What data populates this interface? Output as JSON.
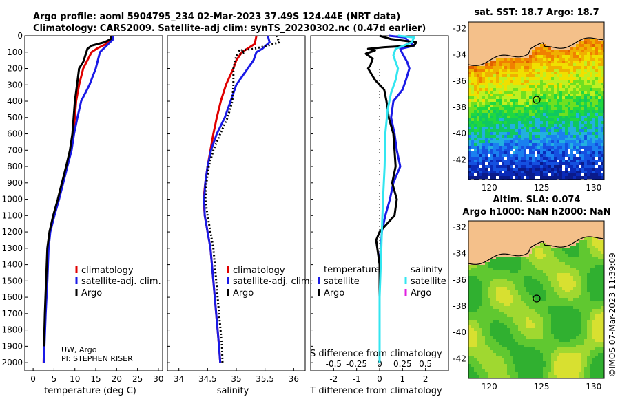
{
  "header": {
    "title_line1": "Argo profile: aoml 5904795_234 02-Mar-2023 37.49S 124.44E (NRT data)",
    "title_line2": "Climatology: CARS2009. Satellite-adj clim: synTS_20230302.nc (0.47d earlier)"
  },
  "credits": {
    "line1": "UW, Argo",
    "line2": "PI: STEPHEN RISER"
  },
  "watermark": "©IMOS 07-Mar-2023 11:39:09",
  "colors": {
    "argo": "#000000",
    "climatology": "#e00000",
    "satellite": "#1a1ae6",
    "sat_salinity": "#33e6f0",
    "argo_salinity": "#e020e0"
  },
  "chart_data": [
    {
      "type": "line",
      "xlabel": "temperature (deg C)",
      "ylabel": "",
      "xlim": [
        -2,
        31
      ],
      "ylim": [
        2050,
        0
      ],
      "xticks": [
        0,
        5,
        10,
        15,
        20,
        25,
        30
      ],
      "yticks": [
        0,
        100,
        200,
        300,
        400,
        500,
        600,
        700,
        800,
        900,
        1000,
        1100,
        1200,
        1300,
        1400,
        1500,
        1600,
        1700,
        1800,
        1900,
        2000
      ],
      "legend": [
        "climatology",
        "satellite-adj. clim.",
        "Argo"
      ],
      "series": [
        {
          "name": "climatology",
          "style": "red",
          "points": [
            [
              18.7,
              0
            ],
            [
              18.5,
              20
            ],
            [
              17.5,
              50
            ],
            [
              15.5,
              75
            ],
            [
              14,
              100
            ],
            [
              13,
              150
            ],
            [
              12,
              200
            ],
            [
              11,
              300
            ],
            [
              10.3,
              400
            ],
            [
              10,
              500
            ],
            [
              9.6,
              600
            ],
            [
              9,
              700
            ],
            [
              8,
              800
            ],
            [
              7,
              900
            ],
            [
              6,
              1000
            ],
            [
              5,
              1100
            ],
            [
              4,
              1200
            ],
            [
              3.6,
              1300
            ],
            [
              3.3,
              1500
            ],
            [
              2.9,
              1700
            ],
            [
              2.6,
              1900
            ],
            [
              2.5,
              2000
            ]
          ]
        },
        {
          "name": "satellite-adj. clim.",
          "style": "blue",
          "points": [
            [
              19.2,
              0
            ],
            [
              19.2,
              20
            ],
            [
              18,
              50
            ],
            [
              16,
              100
            ],
            [
              15,
              200
            ],
            [
              13.5,
              300
            ],
            [
              11.5,
              400
            ],
            [
              10.6,
              500
            ],
            [
              9.8,
              600
            ],
            [
              9.2,
              700
            ],
            [
              8.2,
              800
            ],
            [
              7.2,
              900
            ],
            [
              6.2,
              1000
            ],
            [
              5.1,
              1100
            ],
            [
              4.1,
              1200
            ],
            [
              3.7,
              1300
            ],
            [
              3.4,
              1500
            ],
            [
              3,
              1700
            ],
            [
              2.7,
              1900
            ],
            [
              2.6,
              2000
            ]
          ]
        },
        {
          "name": "Argo",
          "style": "black",
          "points": [
            [
              18.7,
              0
            ],
            [
              18.6,
              20
            ],
            [
              17,
              40
            ],
            [
              14,
              60
            ],
            [
              13,
              80
            ],
            [
              12.5,
              120
            ],
            [
              12,
              160
            ],
            [
              11,
              200
            ],
            [
              10.5,
              300
            ],
            [
              10,
              400
            ],
            [
              9.7,
              500
            ],
            [
              9.4,
              600
            ],
            [
              8.8,
              700
            ],
            [
              7.9,
              800
            ],
            [
              6.9,
              900
            ],
            [
              5.9,
              1000
            ],
            [
              4.8,
              1100
            ],
            [
              3.9,
              1200
            ],
            [
              3.4,
              1300
            ],
            [
              3.1,
              1500
            ],
            [
              2.8,
              1700
            ],
            [
              2.6,
              1900
            ]
          ]
        }
      ]
    },
    {
      "type": "line",
      "xlabel": "salinity",
      "ylabel": "",
      "xlim": [
        33.8,
        36.2
      ],
      "ylim": [
        2050,
        0
      ],
      "xticks": [
        34,
        34.5,
        35,
        35.5,
        36
      ],
      "legend": [
        "climatology",
        "satellite-adj. clim.",
        "Argo"
      ],
      "series": [
        {
          "name": "climatology",
          "style": "red",
          "points": [
            [
              35.35,
              0
            ],
            [
              35.32,
              50
            ],
            [
              35.1,
              100
            ],
            [
              35.0,
              150
            ],
            [
              34.95,
              200
            ],
            [
              34.82,
              300
            ],
            [
              34.73,
              400
            ],
            [
              34.66,
              500
            ],
            [
              34.6,
              600
            ],
            [
              34.55,
              700
            ],
            [
              34.5,
              800
            ],
            [
              34.46,
              900
            ],
            [
              34.43,
              1000
            ],
            [
              34.45,
              1100
            ],
            [
              34.5,
              1200
            ],
            [
              34.55,
              1300
            ],
            [
              34.6,
              1500
            ],
            [
              34.65,
              1700
            ],
            [
              34.7,
              1900
            ],
            [
              34.72,
              2000
            ]
          ]
        },
        {
          "name": "satellite-adj. clim.",
          "style": "blue",
          "points": [
            [
              35.55,
              0
            ],
            [
              35.58,
              40
            ],
            [
              35.45,
              80
            ],
            [
              35.35,
              100
            ],
            [
              35.3,
              150
            ],
            [
              35.2,
              200
            ],
            [
              35.1,
              250
            ],
            [
              35.0,
              300
            ],
            [
              34.9,
              400
            ],
            [
              34.8,
              500
            ],
            [
              34.66,
              600
            ],
            [
              34.56,
              700
            ],
            [
              34.5,
              800
            ],
            [
              34.46,
              900
            ],
            [
              34.44,
              1000
            ],
            [
              34.45,
              1100
            ],
            [
              34.5,
              1200
            ],
            [
              34.55,
              1300
            ],
            [
              34.6,
              1500
            ],
            [
              34.65,
              1700
            ],
            [
              34.7,
              1900
            ],
            [
              34.72,
              2000
            ]
          ]
        },
        {
          "name": "Argo",
          "style": "black-dotted",
          "points": [
            [
              35.7,
              0
            ],
            [
              35.75,
              40
            ],
            [
              35.55,
              60
            ],
            [
              35.3,
              80
            ],
            [
              35.05,
              90
            ],
            [
              35.15,
              100
            ],
            [
              35.0,
              120
            ],
            [
              34.95,
              200
            ],
            [
              34.95,
              250
            ],
            [
              34.95,
              300
            ],
            [
              34.93,
              400
            ],
            [
              34.85,
              500
            ],
            [
              34.72,
              600
            ],
            [
              34.6,
              700
            ],
            [
              34.52,
              800
            ],
            [
              34.48,
              900
            ],
            [
              34.46,
              1000
            ],
            [
              34.5,
              1100
            ],
            [
              34.55,
              1200
            ],
            [
              34.6,
              1300
            ],
            [
              34.65,
              1500
            ],
            [
              34.7,
              1700
            ],
            [
              34.75,
              1900
            ],
            [
              34.76,
              2000
            ]
          ]
        }
      ]
    },
    {
      "type": "line",
      "xlabel": "T difference from climatology",
      "ylabel": "",
      "xlabel_top": "S difference from climatology",
      "xlim": [
        -3,
        3
      ],
      "ylim": [
        2050,
        0
      ],
      "xticks": [
        -2,
        -1,
        0,
        1,
        2
      ],
      "xticks_top": [
        "-0.5",
        "-0.25",
        "0",
        "0.25",
        "0.5"
      ],
      "legend_titles": [
        "temperature",
        "salinity"
      ],
      "legend": [
        "satellite",
        "Argo",
        "satellite",
        "Argo"
      ],
      "series": [
        {
          "name": "satellite",
          "style": "blue",
          "points": [
            [
              0.4,
              0
            ],
            [
              1.1,
              10
            ],
            [
              1.3,
              40
            ],
            [
              1.5,
              60
            ],
            [
              0.9,
              80
            ],
            [
              1.0,
              110
            ],
            [
              1.2,
              160
            ],
            [
              1.3,
              200
            ],
            [
              1.15,
              270
            ],
            [
              1.0,
              330
            ],
            [
              0.6,
              400
            ],
            [
              0.5,
              500
            ],
            [
              0.65,
              600
            ],
            [
              0.75,
              700
            ],
            [
              0.9,
              800
            ],
            [
              0.6,
              900
            ],
            [
              0.45,
              1000
            ],
            [
              0.25,
              1100
            ],
            [
              0.1,
              1200
            ],
            [
              0,
              1400
            ],
            [
              0,
              1600
            ],
            [
              0,
              1800
            ],
            [
              0,
              2000
            ]
          ]
        },
        {
          "name": "Argo",
          "style": "black",
          "points": [
            [
              0,
              0
            ],
            [
              0.5,
              20
            ],
            [
              1.6,
              40
            ],
            [
              1.5,
              60
            ],
            [
              0.2,
              70
            ],
            [
              -0.5,
              80
            ],
            [
              -0.2,
              90
            ],
            [
              -0.6,
              110
            ],
            [
              -0.3,
              140
            ],
            [
              -0.4,
              180
            ],
            [
              -0.5,
              200
            ],
            [
              -0.2,
              270
            ],
            [
              0.2,
              330
            ],
            [
              0.3,
              400
            ],
            [
              0.4,
              500
            ],
            [
              0.6,
              600
            ],
            [
              0.65,
              700
            ],
            [
              0.7,
              800
            ],
            [
              0.55,
              900
            ],
            [
              0.75,
              1000
            ],
            [
              0.65,
              1100
            ],
            [
              0,
              1200
            ],
            [
              -0.15,
              1250
            ],
            [
              -0.1,
              1300
            ],
            [
              0,
              1400
            ],
            [
              0,
              1600
            ],
            [
              0,
              1800
            ],
            [
              0,
              2000
            ]
          ]
        },
        {
          "name": "satellite",
          "style": "cyan",
          "points": [
            [
              0.8,
              0
            ],
            [
              1.5,
              10
            ],
            [
              1.4,
              40
            ],
            [
              0.7,
              80
            ],
            [
              0.6,
              120
            ],
            [
              0.7,
              160
            ],
            [
              0.8,
              200
            ],
            [
              0.7,
              270
            ],
            [
              0.5,
              350
            ],
            [
              0.35,
              450
            ],
            [
              0.25,
              600
            ],
            [
              0.22,
              800
            ],
            [
              0.15,
              1000
            ],
            [
              0.1,
              1200
            ],
            [
              0.05,
              1400
            ],
            [
              0,
              1600
            ],
            [
              0,
              1800
            ],
            [
              0,
              2000
            ]
          ]
        }
      ]
    },
    {
      "type": "heatmap",
      "title": "sat. SST: 18.7 Argo: 18.7",
      "xticks": [
        120,
        125,
        130
      ],
      "yticks": [
        -32,
        -34,
        -36,
        -38,
        -40,
        -42
      ],
      "xlim": [
        118,
        131
      ],
      "ylim": [
        -43.5,
        -31.5
      ]
    },
    {
      "type": "heatmap",
      "title": "Altim. SLA: 0.074",
      "subtitle": "Argo h1000: NaN h2000: NaN",
      "xticks": [
        120,
        125,
        130
      ],
      "yticks": [
        -32,
        -34,
        -36,
        -38,
        -40,
        -42
      ],
      "xlim": [
        118,
        131
      ],
      "ylim": [
        -43.5,
        -31.5
      ]
    }
  ]
}
